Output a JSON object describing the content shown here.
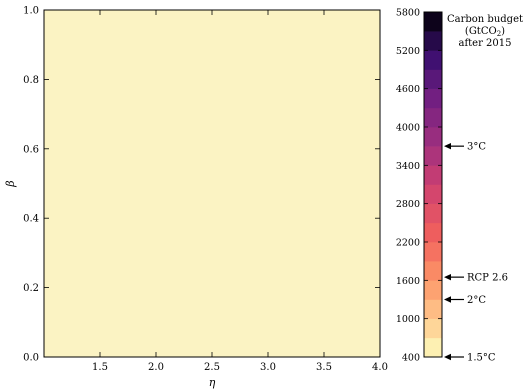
{
  "chart_data": [
    {
      "type": "heatmap",
      "xlabel": "η",
      "ylabel": "β",
      "xlim": [
        1.0,
        4.0
      ],
      "ylim": [
        0.0,
        1.0
      ],
      "x_ticks": [
        {
          "value": 1.5,
          "label": "1.5"
        },
        {
          "value": 2.0,
          "label": "2.0"
        },
        {
          "value": 2.5,
          "label": "2.5"
        },
        {
          "value": 3.0,
          "label": "3.0"
        },
        {
          "value": 3.5,
          "label": "3.5"
        },
        {
          "value": 4.0,
          "label": "4.0"
        }
      ],
      "y_ticks": [
        {
          "value": 0.0,
          "label": "0.0"
        },
        {
          "value": 0.2,
          "label": "0.2"
        },
        {
          "value": 0.4,
          "label": "0.4"
        },
        {
          "value": 0.6,
          "label": "0.6"
        },
        {
          "value": 0.8,
          "label": "0.8"
        },
        {
          "value": 1.0,
          "label": "1.0"
        }
      ],
      "field_value_range": [
        400,
        700
      ],
      "field_color": "#fbf3c3",
      "grid": false
    },
    {
      "type": "colorbar",
      "title_lines": [
        "Carbon budget",
        "(GtCO",
        "2",
        ")",
        "after 2015"
      ],
      "range": [
        400,
        5800
      ],
      "tick_values": [
        400,
        1000,
        1600,
        2200,
        2800,
        3400,
        4000,
        4600,
        5200,
        5800
      ],
      "level_step": 300,
      "annotations": [
        {
          "label": "3°C",
          "value": 3700
        },
        {
          "label": "RCP 2.6",
          "value": 1650
        },
        {
          "label": "2°C",
          "value": 1300
        },
        {
          "label": "1.5°C",
          "value": 400
        }
      ]
    }
  ]
}
